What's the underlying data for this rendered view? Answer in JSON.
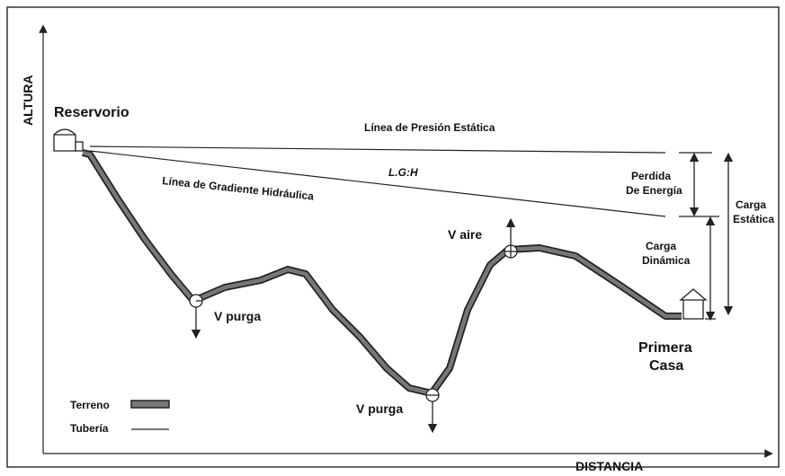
{
  "axes": {
    "y_label": "ALTURA",
    "x_label": "DISTANCIA"
  },
  "labels": {
    "reservoir": "Reservorio",
    "static_line": "Línea de Presión Estática",
    "lgh": "L.G:H",
    "gradient_line": "Línea de Gradiente Hidráulica",
    "energy_loss": [
      "Perdida",
      "De Energía"
    ],
    "static_head": [
      "Carga",
      "Estática"
    ],
    "dynamic_head": [
      "Carga",
      "Dinámica"
    ],
    "air_valve": "V aire",
    "purge_valve_1": "V purga",
    "purge_valve_2": "V purga",
    "first_house": [
      "Primera",
      "Casa"
    ]
  },
  "legend": {
    "terrain": "Terreno",
    "pipe": "Tubería"
  }
}
